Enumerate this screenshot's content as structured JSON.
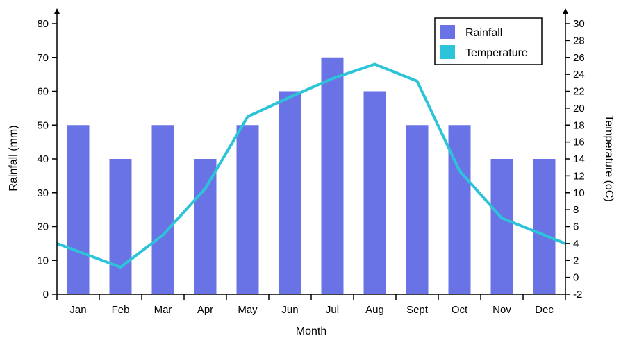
{
  "chart_data": {
    "type": "bar",
    "categories": [
      "Jan",
      "Feb",
      "Mar",
      "Apr",
      "May",
      "Jun",
      "Jul",
      "Aug",
      "Sept",
      "Oct",
      "Nov",
      "Dec"
    ],
    "series": [
      {
        "name": "Rainfall",
        "chart_type": "bar",
        "axis": "left",
        "color": "#6a73e6",
        "values": [
          50,
          40,
          50,
          40,
          50,
          60,
          70,
          60,
          50,
          50,
          40,
          40
        ]
      },
      {
        "name": "Temperature",
        "chart_type": "line",
        "axis": "right",
        "color": "#2cc4d8",
        "values": [
          4,
          1.2,
          5,
          10.5,
          19,
          21.3,
          23.5,
          25.2,
          23.2,
          12.6,
          7,
          4
        ]
      }
    ],
    "xlabel": "Month",
    "ylabel": "Rainfall (mm)",
    "y2label": "Temperature (oC)",
    "ylim": [
      0,
      80
    ],
    "y_ticks": [
      0,
      10,
      20,
      30,
      40,
      50,
      60,
      70,
      80
    ],
    "y2lim": [
      -2,
      30
    ],
    "y2_ticks": [
      -2,
      0,
      2,
      4,
      6,
      8,
      10,
      12,
      14,
      16,
      18,
      20,
      22,
      24,
      26,
      28,
      30
    ],
    "grid": false,
    "legend_position": "top-right"
  }
}
